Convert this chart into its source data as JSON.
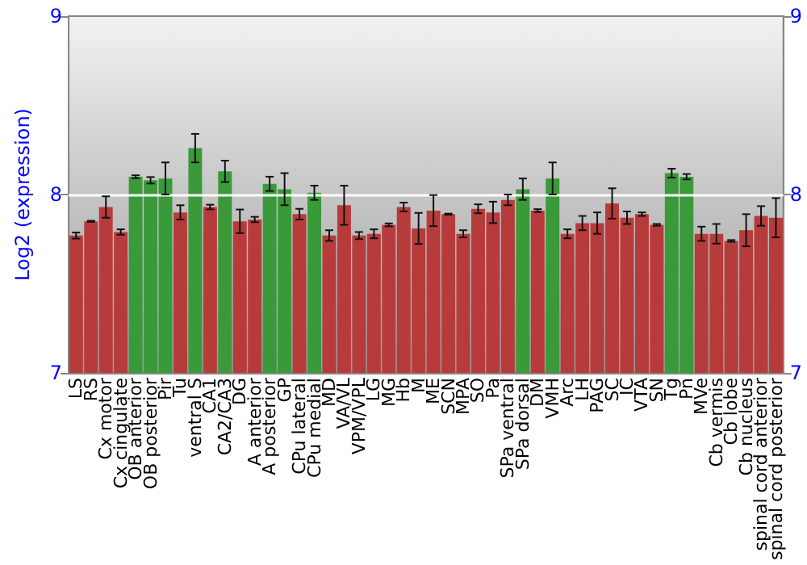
{
  "chart_data": {
    "type": "bar",
    "ylabel": "Log2 (expression)",
    "categories": [
      "LS",
      "RS",
      "Cx motor",
      "Cx cingulate",
      "OB anterior",
      "OB posterior",
      "Pir",
      "Tu",
      "ventral S",
      "CA1",
      "CA2/CA3",
      "DG",
      "A anterior",
      "A posterior",
      "GP",
      "CPu lateral",
      "CPu medial",
      "MD",
      "VA/VL",
      "VPM/VPL",
      "LG",
      "MG",
      "Hb",
      "M",
      "ME",
      "SCN",
      "MPA",
      "SO",
      "Pa",
      "SPa ventral",
      "SPa dorsal",
      "DM",
      "VMH",
      "Arc",
      "LH",
      "PAG",
      "SC",
      "IC",
      "VTA",
      "SN",
      "Tg",
      "Pn",
      "MVe",
      "Cb vermis",
      "Cb lobe",
      "Cb nucleus",
      "spinal cord anterior",
      "spinal cord posterior"
    ],
    "values": [
      7.77,
      7.85,
      7.93,
      7.79,
      8.1,
      8.08,
      8.09,
      7.9,
      8.26,
      7.93,
      8.13,
      7.85,
      7.86,
      8.06,
      8.03,
      7.89,
      8.01,
      7.77,
      7.94,
      7.77,
      7.78,
      7.83,
      7.93,
      7.81,
      7.91,
      7.89,
      7.78,
      7.92,
      7.9,
      7.97,
      8.03,
      7.91,
      8.09,
      7.78,
      7.84,
      7.84,
      7.95,
      7.87,
      7.89,
      7.83,
      8.12,
      8.1,
      7.78,
      7.78,
      7.74,
      7.8,
      7.88,
      7.87
    ],
    "errors": [
      0.017,
      0.003,
      0.06,
      0.015,
      0.008,
      0.018,
      0.09,
      0.04,
      0.08,
      0.013,
      0.06,
      0.066,
      0.015,
      0.04,
      0.09,
      0.03,
      0.04,
      0.03,
      0.11,
      0.02,
      0.025,
      0.008,
      0.025,
      0.087,
      0.087,
      0.003,
      0.02,
      0.025,
      0.06,
      0.03,
      0.06,
      0.008,
      0.09,
      0.025,
      0.04,
      0.06,
      0.085,
      0.035,
      0.01,
      0.005,
      0.025,
      0.015,
      0.04,
      0.055,
      0.005,
      0.09,
      0.055,
      0.11
    ],
    "colors": [
      "#b83b3b",
      "#b83b3b",
      "#b83b3b",
      "#b83b3b",
      "#3a9a3a",
      "#3a9a3a",
      "#3a9a3a",
      "#b83b3b",
      "#3a9a3a",
      "#b83b3b",
      "#3a9a3a",
      "#b83b3b",
      "#b83b3b",
      "#3a9a3a",
      "#3a9a3a",
      "#b83b3b",
      "#3a9a3a",
      "#b83b3b",
      "#b83b3b",
      "#b83b3b",
      "#b83b3b",
      "#b83b3b",
      "#b83b3b",
      "#b83b3b",
      "#b83b3b",
      "#b83b3b",
      "#b83b3b",
      "#b83b3b",
      "#b83b3b",
      "#b83b3b",
      "#3a9a3a",
      "#b83b3b",
      "#3a9a3a",
      "#b83b3b",
      "#b83b3b",
      "#b83b3b",
      "#b83b3b",
      "#b83b3b",
      "#b83b3b",
      "#b83b3b",
      "#3a9a3a",
      "#3a9a3a",
      "#b83b3b",
      "#b83b3b",
      "#b83b3b",
      "#b83b3b",
      "#b83b3b",
      "#b83b3b"
    ],
    "ylim": [
      7,
      9
    ],
    "yticks": [
      7,
      8,
      9
    ],
    "y2lim": [
      7,
      9
    ],
    "y2ticks": [
      7,
      8,
      9
    ],
    "grid": "y"
  }
}
